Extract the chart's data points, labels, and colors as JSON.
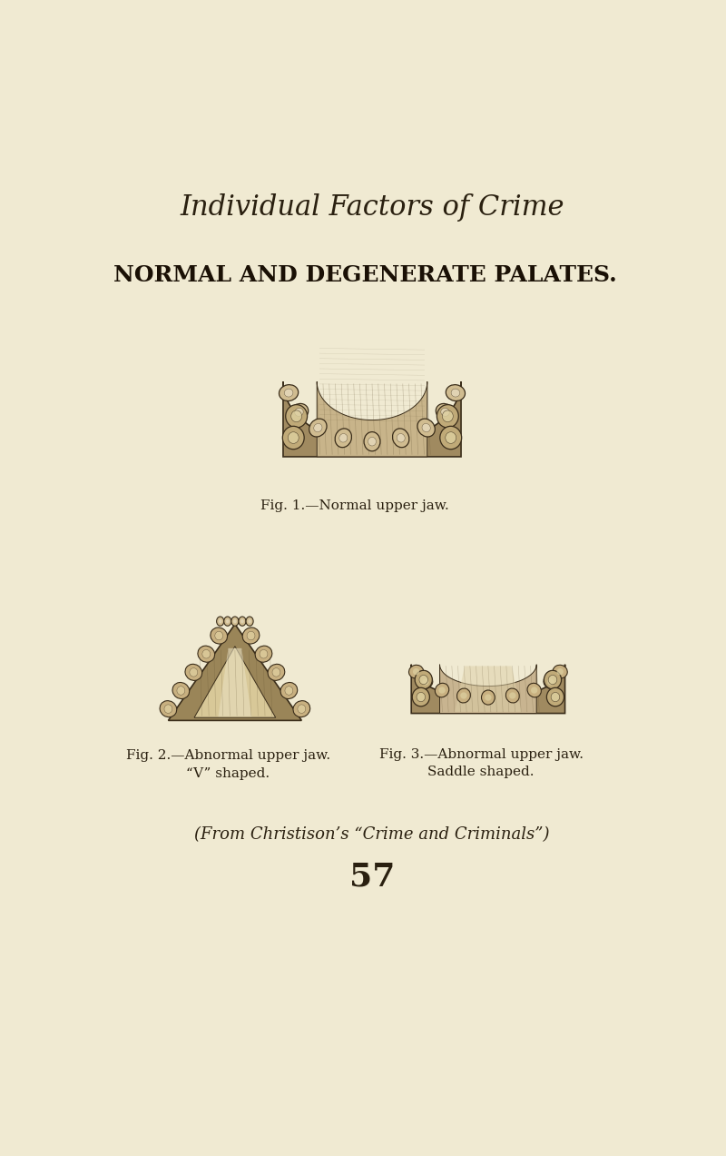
{
  "background_color": "#f0ead2",
  "page_title": "Individual Factors of Crime",
  "page_title_fontsize": 22,
  "page_title_color": "#2a2010",
  "section_title": "NORMAL AND DEGENERATE PALATES.",
  "section_title_fontsize": 18,
  "section_title_color": "#1a1005",
  "fig1_caption": "Fig. 1.—Normal upper jaw.",
  "fig2_caption": "Fig. 2.—Abnormal upper jaw.\n“V” shaped.",
  "fig3_caption": "Fig. 3.—Abnormal upper jaw.\nSaddle shaped.",
  "attribution": "(From Christison’s “Crime and Criminals”)",
  "page_number": "57",
  "caption_fontsize": 11,
  "attribution_fontsize": 13,
  "page_number_fontsize": 26,
  "text_color": "#2a2010"
}
